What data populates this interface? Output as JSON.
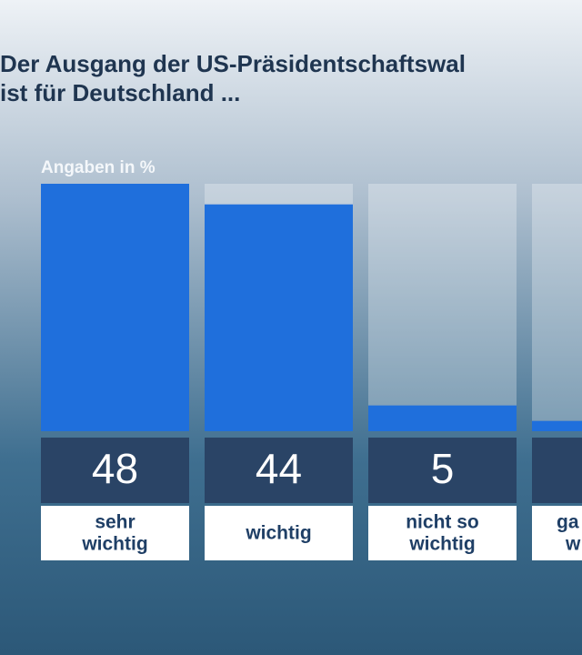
{
  "chart_data": {
    "type": "bar",
    "title_lines": [
      "Der Ausgang der US-Präsidentschaftswal",
      "ist für Deutschland ..."
    ],
    "subtitle": "Angaben in %",
    "categories": [
      [
        "sehr",
        "wichtig"
      ],
      [
        "wichtig"
      ],
      [
        "nicht so",
        "wichtig"
      ],
      [
        "ga",
        "w"
      ]
    ],
    "values": [
      48,
      44,
      5,
      2
    ],
    "color": "#1f6fdc",
    "ylim": [
      0,
      48
    ]
  }
}
